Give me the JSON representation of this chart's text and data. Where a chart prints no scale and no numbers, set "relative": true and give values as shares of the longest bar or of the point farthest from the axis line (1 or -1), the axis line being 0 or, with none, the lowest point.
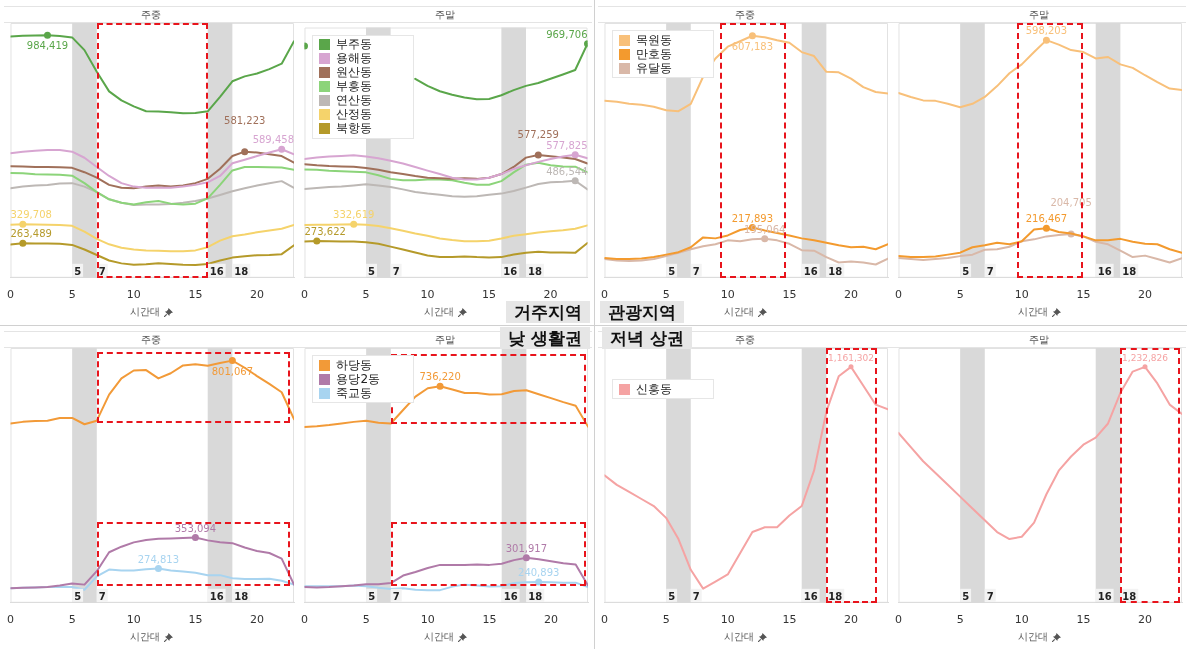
{
  "chart_data": [
    {
      "type": "line",
      "title": "주중",
      "xlabel": "시간대",
      "x": [
        0,
        1,
        2,
        3,
        4,
        5,
        6,
        7,
        8,
        9,
        10,
        11,
        12,
        13,
        14,
        15,
        16,
        17,
        18,
        19,
        20,
        21,
        22,
        23
      ],
      "xlim": [
        0,
        23
      ],
      "xticks": [
        0,
        5,
        10,
        15,
        20
      ],
      "ylim": [
        144000,
        1027000
      ],
      "tick_labels": "x",
      "legend": false,
      "bands": [
        {
          "axis": "x",
          "from": 5,
          "to": 7,
          "color": "#d9d9d9"
        },
        {
          "axis": "x",
          "from": 16,
          "to": 18,
          "color": "#d9d9d9"
        }
      ],
      "annotations": [
        {
          "text": "5",
          "x": 5,
          "y": 144000
        },
        {
          "text": "7",
          "x": 7,
          "y": 144000
        },
        {
          "text": "16",
          "x": 16,
          "y": 144000
        },
        {
          "text": "18",
          "x": 18,
          "y": 144000
        }
      ],
      "series": [
        {
          "color": "#5aa64a",
          "values": [
            980000,
            983000,
            984000,
            984419,
            982000,
            977000,
            933000,
            858000,
            790000,
            759000,
            738000,
            721000,
            720000,
            718000,
            714000,
            715000,
            721000,
            771000,
            825000,
            842000,
            852000,
            867000,
            886000,
            964000
          ],
          "value_labels": [
            null,
            null,
            null,
            "984,419",
            null,
            null,
            null,
            null,
            null,
            null,
            null,
            null,
            null,
            null,
            null,
            null,
            null,
            null,
            null,
            null,
            null,
            null,
            null,
            null
          ]
        },
        {
          "color": "#d7a5d1",
          "values": [
            576000,
            581000,
            584000,
            587000,
            587000,
            581000,
            560000,
            528000,
            497000,
            472000,
            460000,
            456000,
            456000,
            456000,
            460000,
            466000,
            475000,
            497000,
            541000,
            553000,
            566000,
            578000,
            589458,
            572000
          ],
          "value_labels": [
            null,
            null,
            null,
            null,
            null,
            null,
            null,
            null,
            null,
            null,
            null,
            null,
            null,
            null,
            null,
            null,
            null,
            null,
            null,
            null,
            null,
            null,
            "589,458",
            null
          ]
        },
        {
          "color": "#a0705a",
          "values": [
            531000,
            530000,
            528000,
            528000,
            527000,
            525000,
            510000,
            491000,
            466000,
            456000,
            454000,
            460000,
            464000,
            460000,
            464000,
            472000,
            487000,
            522000,
            566000,
            581223,
            578000,
            572000,
            566000,
            543000
          ],
          "value_labels": [
            null,
            null,
            null,
            null,
            null,
            null,
            null,
            null,
            null,
            null,
            null,
            null,
            null,
            null,
            null,
            null,
            null,
            null,
            null,
            "581,223",
            null,
            null,
            null,
            null
          ]
        },
        {
          "color": "#8cd47a",
          "values": [
            507000,
            506000,
            503000,
            502000,
            501000,
            498000,
            472000,
            441000,
            416000,
            404000,
            398000,
            406000,
            410000,
            401000,
            398000,
            401000,
            419000,
            466000,
            516000,
            528000,
            528000,
            527000,
            526000,
            518000
          ]
        },
        {
          "color": "#bdb8b5",
          "values": [
            454000,
            460000,
            464000,
            466000,
            471000,
            472000,
            460000,
            441000,
            416000,
            404000,
            396000,
            398000,
            398000,
            400000,
            404000,
            410000,
            419000,
            431000,
            444000,
            454000,
            464000,
            472000,
            479000,
            456000
          ]
        },
        {
          "color": "#f5d36b",
          "values": [
            328000,
            329708,
            329000,
            328000,
            327000,
            324000,
            304000,
            279000,
            260000,
            248000,
            242000,
            239000,
            238000,
            236000,
            236000,
            239000,
            250000,
            273000,
            288000,
            294000,
            302000,
            308000,
            314000,
            327000
          ],
          "value_labels": [
            null,
            "329,708",
            null,
            null,
            null,
            null,
            null,
            null,
            null,
            null,
            null,
            null,
            null,
            null,
            null,
            null,
            null,
            null,
            null,
            null,
            null,
            null,
            null,
            null
          ]
        },
        {
          "color": "#b59a2a",
          "values": [
            259000,
            263489,
            263000,
            263000,
            262000,
            258000,
            242000,
            223000,
            204000,
            194000,
            189000,
            191000,
            194000,
            192000,
            189000,
            188000,
            192000,
            204000,
            214000,
            219000,
            222000,
            223000,
            226000,
            257000
          ],
          "value_labels": [
            null,
            "263,489",
            null,
            null,
            null,
            null,
            null,
            null,
            null,
            null,
            null,
            null,
            null,
            null,
            null,
            null,
            null,
            null,
            null,
            null,
            null,
            null,
            null,
            null
          ]
        }
      ]
    },
    {
      "type": "line",
      "title": "주말",
      "xlabel": "시간대",
      "x": [
        0,
        1,
        2,
        3,
        4,
        5,
        6,
        7,
        8,
        9,
        10,
        11,
        12,
        13,
        14,
        15,
        16,
        17,
        18,
        19,
        20,
        21,
        22,
        23
      ],
      "xlim": [
        0,
        23
      ],
      "xticks": [
        0,
        5,
        10,
        15,
        20
      ],
      "ylim": [
        144000,
        1027000
      ],
      "tick_labels": "x",
      "legend": "top left",
      "bands": [
        {
          "axis": "x",
          "from": 5,
          "to": 7,
          "color": "#d9d9d9"
        },
        {
          "axis": "x",
          "from": 16,
          "to": 18,
          "color": "#d9d9d9"
        }
      ],
      "annotations": [
        {
          "text": "5",
          "x": 5,
          "y": 144000
        },
        {
          "text": "7",
          "x": 7,
          "y": 144000
        },
        {
          "text": "16",
          "x": 16,
          "y": 144000
        },
        {
          "text": "18",
          "x": 18,
          "y": 144000
        },
        "거주지역"
      ],
      "series": [
        {
          "name": "부주동",
          "color": "#5aa64a",
          "values": [
            962000,
            null,
            null,
            null,
            null,
            null,
            null,
            null,
            null,
            846000,
            821000,
            802000,
            790000,
            780000,
            774000,
            775000,
            788000,
            806000,
            821000,
            831000,
            846000,
            861000,
            877000,
            969706
          ],
          "value_labels": [
            null,
            null,
            null,
            null,
            null,
            null,
            null,
            null,
            null,
            null,
            null,
            null,
            null,
            null,
            null,
            null,
            null,
            null,
            null,
            null,
            null,
            null,
            null,
            "969,706"
          ]
        },
        {
          "name": "용해동",
          "color": "#d7a5d1",
          "values": [
            563000,
            568000,
            572000,
            574000,
            576000,
            572000,
            566000,
            557000,
            547000,
            535000,
            522000,
            510000,
            497000,
            491000,
            491000,
            497000,
            510000,
            528000,
            541000,
            553000,
            563000,
            572000,
            577825,
            566000
          ],
          "value_labels": [
            null,
            null,
            null,
            null,
            null,
            null,
            null,
            null,
            null,
            null,
            null,
            null,
            null,
            null,
            null,
            null,
            null,
            null,
            null,
            null,
            null,
            null,
            "577,825",
            null
          ]
        },
        {
          "name": "원산동",
          "color": "#a0705a",
          "values": [
            545000,
            541000,
            538000,
            537000,
            536000,
            531000,
            525000,
            516000,
            510000,
            503000,
            497000,
            495000,
            493000,
            495000,
            493000,
            497000,
            510000,
            535000,
            568000,
            577259,
            573000,
            568000,
            563000,
            547000
          ],
          "value_labels": [
            null,
            null,
            null,
            null,
            null,
            null,
            null,
            null,
            null,
            null,
            null,
            null,
            null,
            null,
            null,
            null,
            null,
            null,
            null,
            "577,259",
            null,
            null,
            null,
            null
          ]
        },
        {
          "name": "부흥동",
          "color": "#8cd47a",
          "values": [
            526000,
            525000,
            522000,
            520000,
            518000,
            516000,
            506000,
            493000,
            488000,
            488000,
            491000,
            491000,
            488000,
            479000,
            472000,
            472000,
            485000,
            516000,
            543000,
            550000,
            541000,
            537000,
            536000,
            516000
          ]
        },
        {
          "name": "연산동",
          "color": "#bdb8b5",
          "values": [
            457000,
            461000,
            464000,
            466000,
            470000,
            474000,
            470000,
            464000,
            456000,
            447000,
            441000,
            437000,
            432000,
            430000,
            432000,
            437000,
            441000,
            450000,
            462000,
            475000,
            481000,
            483000,
            486544,
            456000
          ],
          "value_labels": [
            null,
            null,
            null,
            null,
            null,
            null,
            null,
            null,
            null,
            null,
            null,
            null,
            null,
            null,
            null,
            null,
            null,
            null,
            null,
            null,
            null,
            null,
            "486,544",
            null
          ]
        },
        {
          "name": "산정동",
          "color": "#f5d36b",
          "values": [
            330000,
            331000,
            331000,
            332000,
            332619,
            331000,
            327000,
            319000,
            310000,
            300000,
            292000,
            283000,
            277000,
            273000,
            273000,
            275000,
            283000,
            292000,
            298000,
            304000,
            308000,
            312000,
            317000,
            329000
          ],
          "value_labels": [
            null,
            null,
            null,
            null,
            "332,619",
            null,
            null,
            null,
            null,
            null,
            null,
            null,
            null,
            null,
            null,
            null,
            null,
            null,
            null,
            null,
            null,
            null,
            null,
            null
          ]
        },
        {
          "name": "북항동",
          "color": "#b59a2a",
          "values": [
            272000,
            273622,
            273000,
            272000,
            272000,
            269000,
            264000,
            254000,
            244000,
            233000,
            223000,
            217000,
            217000,
            219000,
            217000,
            216000,
            217000,
            226000,
            232000,
            236000,
            233000,
            233000,
            232000,
            267000
          ],
          "value_labels": [
            null,
            "273,622",
            null,
            null,
            null,
            null,
            null,
            null,
            null,
            null,
            null,
            null,
            null,
            null,
            null,
            null,
            null,
            null,
            null,
            null,
            null,
            null,
            null,
            null
          ]
        }
      ]
    },
    {
      "type": "line",
      "title": "주중",
      "xlabel": "시간대",
      "x": [
        0,
        1,
        2,
        3,
        4,
        5,
        6,
        7,
        8,
        9,
        10,
        11,
        12,
        13,
        14,
        15,
        16,
        17,
        18,
        19,
        20,
        21,
        22,
        23
      ],
      "xlim": [
        0,
        23
      ],
      "xticks": [
        0,
        5,
        10,
        15,
        20
      ],
      "ylim": [
        116000,
        633000
      ],
      "tick_labels": "x",
      "legend": "top left",
      "bands": [
        {
          "axis": "x",
          "from": 5,
          "to": 7,
          "color": "#d9d9d9"
        },
        {
          "axis": "x",
          "from": 16,
          "to": 18,
          "color": "#d9d9d9"
        }
      ],
      "annotations": [
        {
          "text": "5",
          "x": 5,
          "y": 116000
        },
        {
          "text": "7",
          "x": 7,
          "y": 116000
        },
        {
          "text": "16",
          "x": 16,
          "y": 116000
        },
        {
          "text": "18",
          "x": 18,
          "y": 116000
        },
        "관광지역"
      ],
      "series": [
        {
          "name": "목원동",
          "color": "#f8c07a",
          "values": [
            475000,
            473000,
            469000,
            467000,
            463000,
            456000,
            454000,
            469000,
            524000,
            561000,
            585000,
            596000,
            607183,
            604000,
            598000,
            593000,
            574000,
            566000,
            534000,
            533000,
            520000,
            503000,
            493000,
            490000
          ],
          "value_labels": [
            null,
            null,
            null,
            null,
            null,
            null,
            null,
            null,
            null,
            null,
            null,
            null,
            "607,183",
            null,
            null,
            null,
            null,
            null,
            null,
            null,
            null,
            null,
            null,
            null
          ]
        },
        {
          "name": "만호동",
          "color": "#f39a2e",
          "values": [
            156000,
            154000,
            154000,
            155000,
            158000,
            163000,
            168000,
            178000,
            198000,
            196000,
            202000,
            213000,
            217893,
            212000,
            207000,
            202000,
            196000,
            192000,
            187000,
            182000,
            178000,
            179000,
            174000,
            184000
          ],
          "value_labels": [
            null,
            null,
            null,
            null,
            null,
            null,
            null,
            null,
            null,
            null,
            null,
            null,
            "217,893",
            null,
            null,
            null,
            null,
            null,
            null,
            null,
            null,
            null,
            null,
            null
          ]
        },
        {
          "name": "유달동",
          "color": "#d9b8a8",
          "values": [
            154000,
            151000,
            150000,
            151000,
            154000,
            160000,
            167000,
            174000,
            180000,
            184000,
            192000,
            190000,
            194000,
            195064,
            192000,
            185000,
            172000,
            171000,
            158000,
            147000,
            149000,
            147000,
            143000,
            155000
          ],
          "value_labels": [
            null,
            null,
            null,
            null,
            null,
            null,
            null,
            null,
            null,
            null,
            null,
            null,
            null,
            "195,064",
            null,
            null,
            null,
            null,
            null,
            null,
            null,
            null,
            null,
            null
          ]
        }
      ]
    },
    {
      "type": "line",
      "title": "주말",
      "xlabel": "시간대",
      "x": [
        0,
        1,
        2,
        3,
        4,
        5,
        6,
        7,
        8,
        9,
        10,
        11,
        12,
        13,
        14,
        15,
        16,
        17,
        18,
        19,
        20,
        21,
        22,
        23
      ],
      "xlim": [
        0,
        23
      ],
      "xticks": [
        0,
        5,
        10,
        15,
        20
      ],
      "ylim": [
        116000,
        633000
      ],
      "tick_labels": "x",
      "legend": false,
      "bands": [
        {
          "axis": "x",
          "from": 5,
          "to": 7,
          "color": "#d9d9d9"
        },
        {
          "axis": "x",
          "from": 16,
          "to": 18,
          "color": "#d9d9d9"
        }
      ],
      "annotations": [
        {
          "text": "5",
          "x": 5,
          "y": 116000
        },
        {
          "text": "7",
          "x": 7,
          "y": 116000
        },
        {
          "text": "16",
          "x": 16,
          "y": 116000
        },
        {
          "text": "18",
          "x": 18,
          "y": 116000
        }
      ],
      "series": [
        {
          "color": "#f8c07a",
          "values": [
            491000,
            483000,
            476000,
            475000,
            469000,
            462000,
            469000,
            483000,
            505000,
            531000,
            549000,
            574000,
            598203,
            589000,
            578000,
            574000,
            561000,
            564000,
            549000,
            542000,
            527000,
            513000,
            500000,
            497000
          ],
          "value_labels": [
            null,
            null,
            null,
            null,
            null,
            null,
            null,
            null,
            null,
            null,
            null,
            null,
            "598,203",
            null,
            null,
            null,
            null,
            null,
            null,
            null,
            null,
            null,
            null,
            null
          ]
        },
        {
          "color": "#f39a2e",
          "values": [
            160000,
            158000,
            158000,
            159000,
            163000,
            167000,
            178000,
            182000,
            187000,
            184000,
            190000,
            214000,
            216467,
            209000,
            206000,
            200000,
            192000,
            192000,
            195000,
            189000,
            185000,
            184000,
            174000,
            167000
          ],
          "value_labels": [
            null,
            null,
            null,
            null,
            null,
            null,
            null,
            null,
            null,
            null,
            null,
            null,
            "216,467",
            null,
            null,
            null,
            null,
            null,
            null,
            null,
            null,
            null,
            null,
            null
          ]
        },
        {
          "color": "#d9b8a8",
          "values": [
            156000,
            154000,
            152000,
            154000,
            156000,
            160000,
            163000,
            173000,
            174000,
            179000,
            190000,
            194000,
            200000,
            203000,
            204705,
            200000,
            189000,
            184000,
            171000,
            158000,
            161000,
            154000,
            147000,
            156000
          ],
          "value_labels": [
            null,
            null,
            null,
            null,
            null,
            null,
            null,
            null,
            null,
            null,
            null,
            null,
            null,
            null,
            "204,705",
            null,
            null,
            null,
            null,
            null,
            null,
            null,
            null,
            null
          ]
        }
      ]
    },
    {
      "type": "line",
      "title": "주중",
      "xlabel": "시간대",
      "x": [
        0,
        1,
        2,
        3,
        4,
        5,
        6,
        7,
        8,
        9,
        10,
        11,
        12,
        13,
        14,
        15,
        16,
        17,
        18,
        19,
        20,
        21,
        22,
        23
      ],
      "xlim": [
        0,
        23
      ],
      "xticks": [
        0,
        5,
        10,
        15,
        20
      ],
      "ylim": [
        188000,
        833000
      ],
      "tick_labels": "x",
      "legend": false,
      "bands": [
        {
          "axis": "x",
          "from": 5,
          "to": 7,
          "color": "#d9d9d9"
        },
        {
          "axis": "x",
          "from": 16,
          "to": 18,
          "color": "#d9d9d9"
        }
      ],
      "annotations": [
        {
          "text": "5",
          "x": 5,
          "y": 188000
        },
        {
          "text": "7",
          "x": 7,
          "y": 188000
        },
        {
          "text": "16",
          "x": 16,
          "y": 188000
        },
        {
          "text": "18",
          "x": 18,
          "y": 188000
        }
      ],
      "series": [
        {
          "color": "#f29a38",
          "values": [
            642000,
            646000,
            648000,
            649000,
            656000,
            656000,
            640000,
            649000,
            715000,
            756000,
            776000,
            777000,
            756000,
            769000,
            789000,
            792000,
            788000,
            795000,
            801067,
            783000,
            762000,
            742000,
            721000,
            653000
          ],
          "value_labels": [
            null,
            null,
            null,
            null,
            null,
            null,
            null,
            null,
            null,
            null,
            null,
            null,
            null,
            null,
            null,
            null,
            null,
            null,
            "801,067",
            null,
            null,
            null,
            null,
            null
          ]
        },
        {
          "color": "#b07aa8",
          "values": [
            225000,
            226000,
            227000,
            228000,
            232000,
            237000,
            234000,
            268000,
            316000,
            330000,
            341000,
            347000,
            350000,
            351000,
            352000,
            353094,
            346000,
            341000,
            339000,
            328000,
            319000,
            314000,
            300000,
            234000
          ],
          "value_labels": [
            null,
            null,
            null,
            null,
            null,
            null,
            null,
            null,
            null,
            null,
            null,
            null,
            null,
            null,
            null,
            "353,094",
            null,
            null,
            null,
            null,
            null,
            null,
            null,
            null
          ]
        },
        {
          "color": "#a8d4f0",
          "values": [
            225000,
            226000,
            227000,
            228000,
            228000,
            228000,
            221000,
            255000,
            272000,
            270000,
            270000,
            273000,
            274813,
            270000,
            267000,
            264000,
            258000,
            258000,
            250000,
            248000,
            248000,
            249000,
            244000,
            234000
          ],
          "value_labels": [
            null,
            null,
            null,
            null,
            null,
            null,
            null,
            null,
            null,
            null,
            null,
            null,
            "274,813",
            null,
            null,
            null,
            null,
            null,
            null,
            null,
            null,
            null,
            null,
            null
          ]
        }
      ]
    },
    {
      "type": "line",
      "title": "주말",
      "xlabel": "시간대",
      "x": [
        0,
        1,
        2,
        3,
        4,
        5,
        6,
        7,
        8,
        9,
        10,
        11,
        12,
        13,
        14,
        15,
        16,
        17,
        18,
        19,
        20,
        21,
        22,
        23
      ],
      "xlim": [
        0,
        23
      ],
      "xticks": [
        0,
        5,
        10,
        15,
        20
      ],
      "ylim": [
        188000,
        833000
      ],
      "tick_labels": "x",
      "legend": "top left",
      "bands": [
        {
          "axis": "x",
          "from": 5,
          "to": 7,
          "color": "#d9d9d9"
        },
        {
          "axis": "x",
          "from": 16,
          "to": 18,
          "color": "#d9d9d9"
        }
      ],
      "annotations": [
        {
          "text": "5",
          "x": 5,
          "y": 188000
        },
        {
          "text": "7",
          "x": 7,
          "y": 188000
        },
        {
          "text": "16",
          "x": 16,
          "y": 188000
        },
        {
          "text": "18",
          "x": 18,
          "y": 188000
        },
        "낮 생활권"
      ],
      "series": [
        {
          "name": "하당동",
          "color": "#f29a38",
          "values": [
            633000,
            635000,
            638000,
            642000,
            646000,
            649000,
            644000,
            642000,
            676000,
            710000,
            731000,
            736220,
            728000,
            719000,
            719000,
            715000,
            716000,
            724000,
            726000,
            716000,
            706000,
            696000,
            687000,
            634000
          ],
          "value_labels": [
            null,
            null,
            null,
            null,
            null,
            null,
            null,
            null,
            null,
            null,
            null,
            "736,220",
            null,
            null,
            null,
            null,
            null,
            null,
            null,
            null,
            null,
            null,
            null,
            null
          ]
        },
        {
          "name": "용당2동",
          "color": "#b07aa8",
          "values": [
            228000,
            227000,
            228000,
            230000,
            232000,
            235000,
            235000,
            238000,
            257000,
            266000,
            276000,
            284000,
            284000,
            284000,
            285000,
            284000,
            287000,
            296000,
            301917,
            298000,
            293000,
            288000,
            285000,
            232000
          ],
          "value_labels": [
            null,
            null,
            null,
            null,
            null,
            null,
            null,
            null,
            null,
            null,
            null,
            null,
            null,
            null,
            null,
            null,
            null,
            null,
            "301,917",
            null,
            null,
            null,
            null,
            null
          ]
        },
        {
          "name": "죽교동",
          "color": "#a8d4f0",
          "values": [
            230000,
            230000,
            230000,
            230000,
            232000,
            230000,
            226000,
            223000,
            225000,
            221000,
            220000,
            220000,
            229000,
            234000,
            232000,
            229000,
            230000,
            238000,
            240000,
            240893,
            240000,
            239000,
            239000,
            228000
          ],
          "value_labels": [
            null,
            null,
            null,
            null,
            null,
            null,
            null,
            null,
            null,
            null,
            null,
            null,
            null,
            null,
            null,
            null,
            null,
            null,
            null,
            "240,893",
            null,
            null,
            null,
            null
          ]
        }
      ]
    },
    {
      "type": "line",
      "title": "주중",
      "xlabel": "시간대",
      "x": [
        0,
        1,
        2,
        3,
        4,
        5,
        6,
        7,
        8,
        9,
        10,
        11,
        12,
        13,
        14,
        15,
        16,
        17,
        18,
        19,
        20,
        21,
        22,
        23
      ],
      "xlim": [
        0,
        23
      ],
      "xticks": [
        0,
        5,
        10,
        15,
        20
      ],
      "relative": true,
      "tick_labels": "x",
      "legend": "top left",
      "bands": [
        {
          "axis": "x",
          "from": 5,
          "to": 7,
          "color": "#d9d9d9"
        },
        {
          "axis": "x",
          "from": 16,
          "to": 18,
          "color": "#d9d9d9"
        }
      ],
      "annotations": [
        {
          "text": "5",
          "x": 5,
          "y": 0
        },
        {
          "text": "7",
          "x": 7,
          "y": 0
        },
        {
          "text": "16",
          "x": 16,
          "y": 0
        },
        {
          "text": "18",
          "x": 18,
          "y": 0
        },
        {
          "text": "1,161,302",
          "x": 20,
          "y": 1
        },
        "저녁 상권"
      ],
      "series": [
        {
          "name": "신흥동",
          "color": "#f5a3a3",
          "values": [
            0.54,
            0.5,
            0.47,
            0.44,
            0.41,
            0.36,
            0.27,
            0.14,
            0.06,
            0.09,
            0.12,
            0.21,
            0.3,
            0.32,
            0.32,
            0.37,
            0.41,
            0.56,
            0.81,
            0.96,
            1,
            0.92,
            0.84,
            0.82
          ]
        }
      ]
    },
    {
      "type": "line",
      "title": "주말",
      "xlabel": "시간대",
      "x": [
        0,
        1,
        2,
        3,
        4,
        5,
        6,
        7,
        8,
        9,
        10,
        11,
        12,
        13,
        14,
        15,
        16,
        17,
        18,
        19,
        20,
        21,
        22,
        23
      ],
      "xlim": [
        0,
        23
      ],
      "xticks": [
        0,
        5,
        10,
        15,
        20
      ],
      "relative": true,
      "tick_labels": "x",
      "legend": false,
      "bands": [
        {
          "axis": "x",
          "from": 5,
          "to": 7,
          "color": "#d9d9d9"
        },
        {
          "axis": "x",
          "from": 16,
          "to": 18,
          "color": "#d9d9d9"
        }
      ],
      "annotations": [
        {
          "text": "5",
          "x": 5,
          "y": 0
        },
        {
          "text": "7",
          "x": 7,
          "y": 0
        },
        {
          "text": "16",
          "x": 16,
          "y": 0
        },
        {
          "text": "18",
          "x": 18,
          "y": 0
        },
        {
          "text": "1,232,826",
          "x": 20,
          "y": 1
        }
      ],
      "series": [
        {
          "color": "#f5a3a3",
          "values": [
            0.72,
            0.66,
            0.6,
            0.55,
            0.5,
            0.45,
            0.4,
            0.35,
            0.3,
            0.27,
            0.28,
            0.34,
            0.46,
            0.56,
            0.62,
            0.67,
            0.7,
            0.76,
            0.89,
            0.98,
            1,
            0.93,
            0.84,
            0.8
          ]
        }
      ]
    }
  ]
}
